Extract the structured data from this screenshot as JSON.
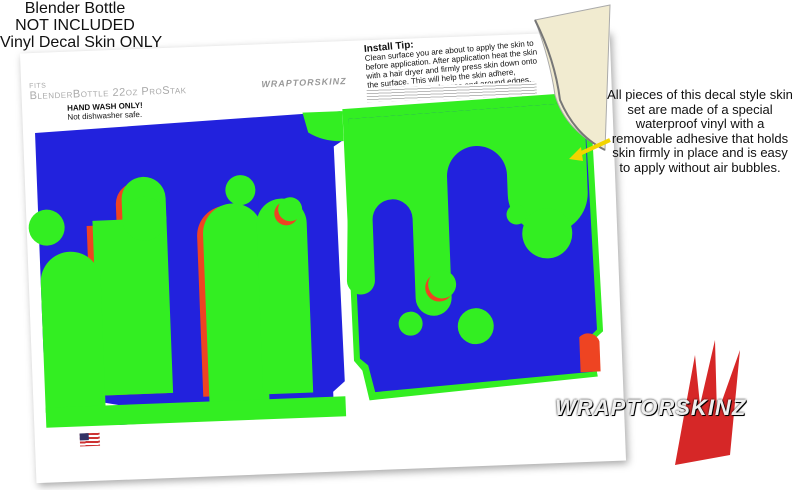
{
  "header": {
    "lines": [
      "Blender Bottle",
      "NOT INCLUDED",
      "Vinyl Decal Skin ONLY"
    ]
  },
  "sheet": {
    "fits_small": "FITS",
    "fits_product": "BlenderBottle 22oz ProStak",
    "wash_title": "HAND WASH ONLY!",
    "wash_text": "Not dishwasher safe.",
    "tip_title": "Install Tip:",
    "tip_text": "Clean surface you are about to apply the skin to before application. After application heat the skin with a hair dryer and firmly press skin down onto the surface. This will help the skin adhere, especially on curved areas and around edges.",
    "colors": {
      "background": "#2222dd",
      "blobs": "#33ee22",
      "shadow": "#ee4422"
    }
  },
  "note": "All pieces of this decal style skin set are made of a special waterproof vinyl with a removable adhesive that holds skin firmly in place and is easy to apply without air bubbles.",
  "brand": {
    "logo_text": "WRAPTORSKINZ"
  }
}
